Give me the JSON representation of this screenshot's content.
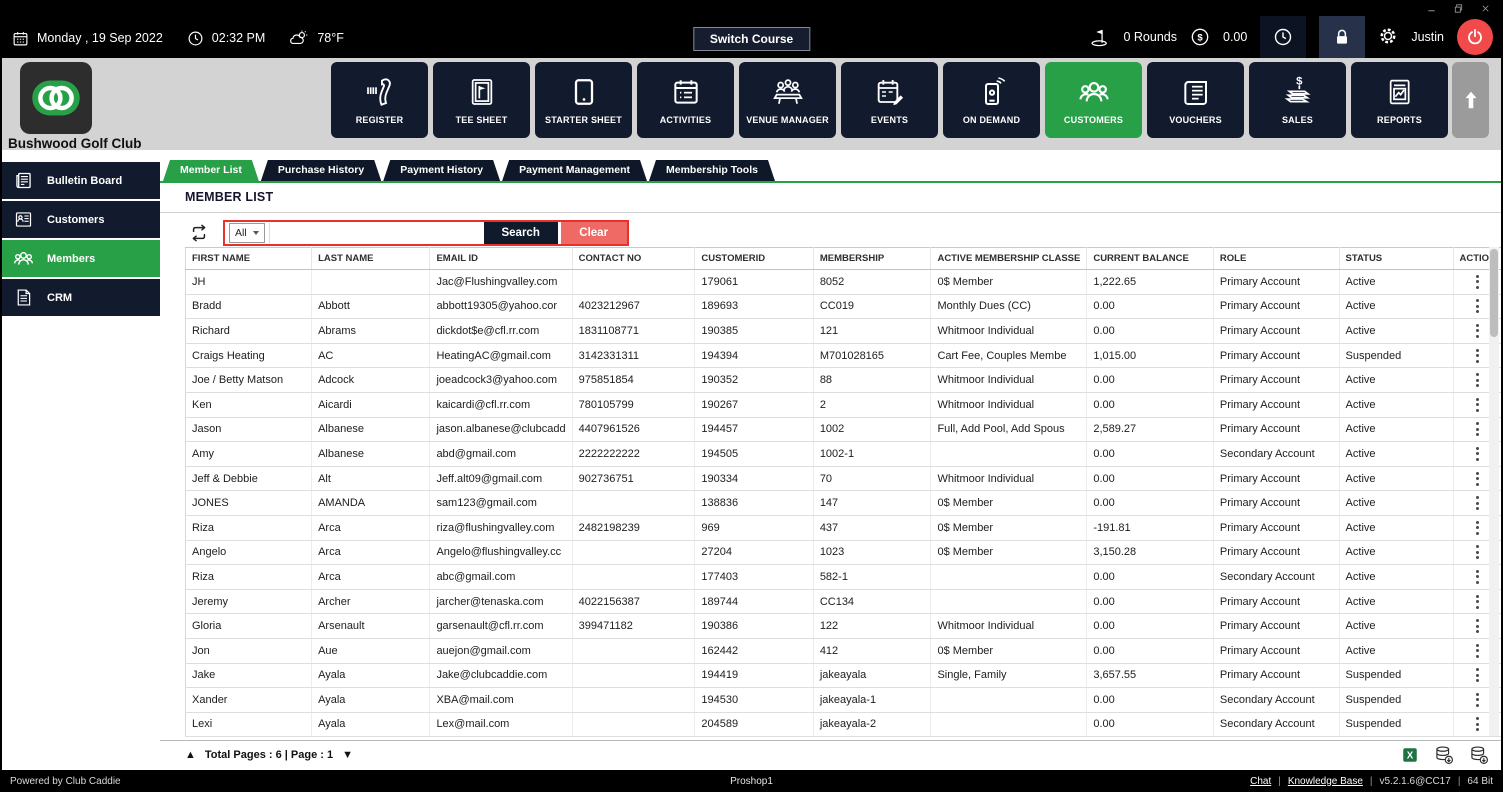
{
  "topbar": {
    "date": "Monday , 19 Sep 2022",
    "time": "02:32 PM",
    "temperature": "78°F",
    "switch_course_label": "Switch Course",
    "rounds_label": "0 Rounds",
    "amount": "0.00",
    "user_name": "Justin"
  },
  "brand": {
    "club_name": "Bushwood Golf Club"
  },
  "colors": {
    "accent_green": "#27a047",
    "navy": "#121b2d",
    "alert_red": "#e8312a",
    "clear_red": "#ef6a64",
    "power_red": "#f24a4a"
  },
  "nav": {
    "items": [
      {
        "label": "REGISTER",
        "icon": "barcode-scanner-icon",
        "active": false
      },
      {
        "label": "TEE SHEET",
        "icon": "tee-sheet-icon",
        "active": false
      },
      {
        "label": "STARTER SHEET",
        "icon": "starter-sheet-icon",
        "active": false
      },
      {
        "label": "ACTIVITIES",
        "icon": "activities-calendar-icon",
        "active": false
      },
      {
        "label": "VENUE MANAGER",
        "icon": "venue-manager-icon",
        "active": false
      },
      {
        "label": "EVENTS",
        "icon": "events-calendar-icon",
        "active": false
      },
      {
        "label": "ON DEMAND",
        "icon": "on-demand-phone-icon",
        "active": false
      },
      {
        "label": "CUSTOMERS",
        "icon": "customers-group-icon",
        "active": true
      },
      {
        "label": "VOUCHERS",
        "icon": "vouchers-icon",
        "active": false
      },
      {
        "label": "SALES",
        "icon": "sales-money-icon",
        "active": false
      },
      {
        "label": "REPORTS",
        "icon": "reports-chart-icon",
        "active": false
      }
    ]
  },
  "sidebar": {
    "items": [
      {
        "label": "Bulletin Board",
        "icon": "bulletin-board-icon",
        "active": false
      },
      {
        "label": "Customers",
        "icon": "customer-card-icon",
        "active": false
      },
      {
        "label": "Members",
        "icon": "members-group-icon",
        "active": true
      },
      {
        "label": "CRM",
        "icon": "crm-document-icon",
        "active": false
      }
    ]
  },
  "tabs": [
    {
      "label": "Member List",
      "active": true
    },
    {
      "label": "Purchase History",
      "active": false
    },
    {
      "label": "Payment History",
      "active": false
    },
    {
      "label": "Payment Management",
      "active": false
    },
    {
      "label": "Membership Tools",
      "active": false
    }
  ],
  "page": {
    "title": "MEMBER LIST"
  },
  "search": {
    "filter_selected": "All",
    "input_value": "",
    "search_label": "Search",
    "clear_label": "Clear"
  },
  "table": {
    "columns": [
      "FIRST NAME",
      "LAST NAME",
      "EMAIL ID",
      "CONTACT NO",
      "CUSTOMERID",
      "MEMBERSHIP",
      "ACTIVE MEMBERSHIP CLASSE",
      "CURRENT BALANCE",
      "ROLE",
      "STATUS",
      "ACTION"
    ],
    "rows": [
      [
        "JH",
        "",
        "Jac@Flushingvalley.com",
        "",
        "179061",
        "8052",
        "0$ Member",
        "1,222.65",
        "Primary Account",
        "Active"
      ],
      [
        "Bradd",
        "Abbott",
        "abbott19305@yahoo.cor",
        "4023212967",
        "189693",
        "CC019",
        "Monthly Dues (CC)",
        "0.00",
        "Primary Account",
        "Active"
      ],
      [
        "Richard",
        "Abrams",
        "dickdot$e@cfl.rr.com",
        "1831108771",
        "190385",
        "121",
        "Whitmoor Individual",
        "0.00",
        "Primary Account",
        "Active"
      ],
      [
        "Craigs Heating",
        "AC",
        "HeatingAC@gmail.com",
        "3142331311",
        "194394",
        "M701028165",
        "Cart Fee, Couples Membe",
        "1,015.00",
        "Primary Account",
        "Suspended"
      ],
      [
        "Joe / Betty Matson",
        "Adcock",
        "joeadcock3@yahoo.com",
        "975851854",
        "190352",
        "88",
        "Whitmoor Individual",
        "0.00",
        "Primary Account",
        "Active"
      ],
      [
        "Ken",
        "Aicardi",
        "kaicardi@cfl.rr.com",
        "780105799",
        "190267",
        "2",
        "Whitmoor Individual",
        "0.00",
        "Primary Account",
        "Active"
      ],
      [
        "Jason",
        "Albanese",
        "jason.albanese@clubcadd",
        "4407961526",
        "194457",
        "1002",
        "Full, Add Pool, Add Spous",
        "2,589.27",
        "Primary Account",
        "Active"
      ],
      [
        "Amy",
        "Albanese",
        "abd@gmail.com",
        "2222222222",
        "194505",
        "1002-1",
        "",
        "0.00",
        "Secondary Account",
        "Active"
      ],
      [
        "Jeff & Debbie",
        "Alt",
        "Jeff.alt09@gmail.com",
        "902736751",
        "190334",
        "70",
        "Whitmoor Individual",
        "0.00",
        "Primary Account",
        "Active"
      ],
      [
        "JONES",
        "AMANDA",
        "sam123@gmail.com",
        "",
        "138836",
        "147",
        "0$ Member",
        "0.00",
        "Primary Account",
        "Active"
      ],
      [
        "Riza",
        "Arca",
        "riza@flushingvalley.com",
        "2482198239",
        "969",
        "437",
        "0$ Member",
        "-191.81",
        "Primary Account",
        "Active"
      ],
      [
        "Angelo",
        "Arca",
        "Angelo@flushingvalley.cc",
        "",
        "27204",
        "1023",
        "0$ Member",
        "3,150.28",
        "Primary Account",
        "Active"
      ],
      [
        "Riza",
        "Arca",
        "abc@gmail.com",
        "",
        "177403",
        "582-1",
        "",
        "0.00",
        "Secondary Account",
        "Active"
      ],
      [
        "Jeremy",
        "Archer",
        "jarcher@tenaska.com",
        "4022156387",
        "189744",
        "CC134",
        "",
        "0.00",
        "Primary Account",
        "Active"
      ],
      [
        "Gloria",
        "Arsenault",
        "garsenault@cfl.rr.com",
        "399471182",
        "190386",
        "122",
        "Whitmoor Individual",
        "0.00",
        "Primary Account",
        "Active"
      ],
      [
        "Jon",
        "Aue",
        "auejon@gmail.com",
        "",
        "162442",
        "412",
        "0$ Member",
        "0.00",
        "Primary Account",
        "Active"
      ],
      [
        "Jake",
        "Ayala",
        "Jake@clubcaddie.com",
        "",
        "194419",
        "jakeayala",
        "Single, Family",
        "3,657.55",
        "Primary Account",
        "Suspended"
      ],
      [
        "Xander",
        "Ayala",
        "XBA@mail.com",
        "",
        "194530",
        "jakeayala-1",
        "",
        "0.00",
        "Secondary Account",
        "Suspended"
      ],
      [
        "Lexi",
        "Ayala",
        "Lex@mail.com",
        "",
        "204589",
        "jakeayala-2",
        "",
        "0.00",
        "Secondary Account",
        "Suspended"
      ]
    ]
  },
  "pagination": {
    "prev": "▲",
    "label": "Total Pages : 6 | Page : 1",
    "next": "▼"
  },
  "statusbar": {
    "powered_by": "Powered by Club Caddie",
    "terminal": "Proshop1",
    "chat_link": "Chat",
    "kb_link": "Knowledge Base",
    "version": "v5.2.1.6@CC17",
    "bits": "64 Bit"
  }
}
